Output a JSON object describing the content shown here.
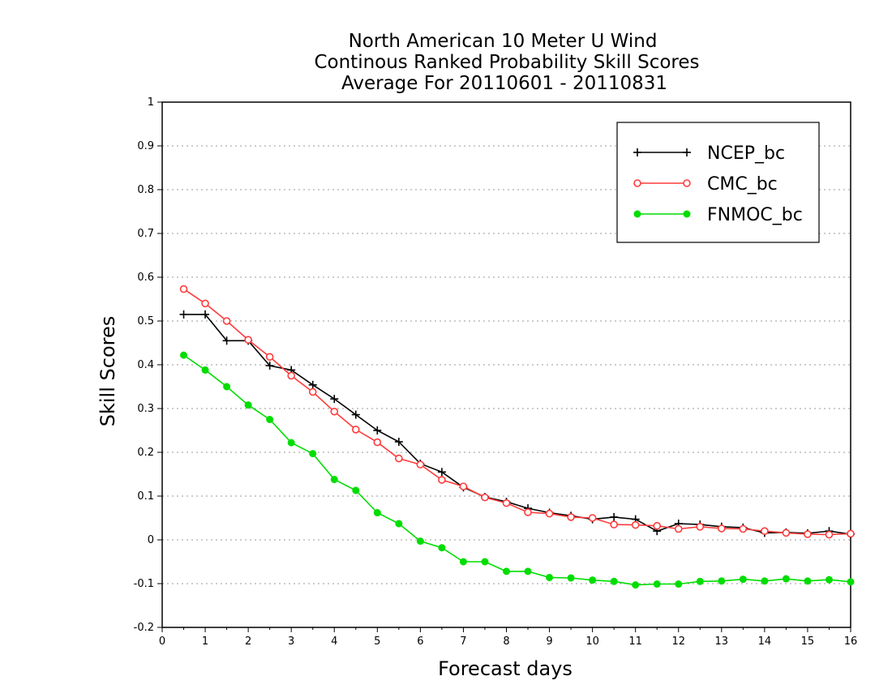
{
  "chart_data": {
    "type": "line",
    "title": [
      "North American 10 Meter U Wind",
      "Continous Ranked Probability Skill Scores",
      "Average For 20110601 - 20110831"
    ],
    "xlabel": "Forecast days",
    "ylabel": "Skill Scores",
    "xlim": [
      0,
      16
    ],
    "ylim": [
      -0.2,
      1
    ],
    "xticks": [
      0,
      1,
      2,
      3,
      4,
      5,
      6,
      7,
      8,
      9,
      10,
      11,
      12,
      13,
      14,
      15,
      16
    ],
    "xtick_labels": [
      "0",
      "1",
      "2",
      "3",
      "4",
      "5",
      "6",
      "7",
      "8",
      "9",
      "10",
      "11",
      "12",
      "13",
      "14",
      "15",
      "16"
    ],
    "yticks": [
      -0.2,
      -0.1,
      0,
      0.1,
      0.2,
      0.3,
      0.4,
      0.5,
      0.6,
      0.7,
      0.8,
      0.9,
      1
    ],
    "ytick_labels": [
      "-0.2",
      "-0.1",
      "0",
      "0.1",
      "0.2",
      "0.3",
      "0.4",
      "0.5",
      "0.6",
      "0.7",
      "0.8",
      "0.9",
      "1"
    ],
    "grid": true,
    "legend_position": "top-right",
    "x": [
      0.5,
      1,
      1.5,
      2,
      2.5,
      3,
      3.5,
      4,
      4.5,
      5,
      5.5,
      6,
      6.5,
      7,
      7.5,
      8,
      8.5,
      9,
      9.5,
      10,
      10.5,
      11,
      11.5,
      12,
      12.5,
      13,
      13.5,
      14,
      14.5,
      15,
      15.5,
      16
    ],
    "series": [
      {
        "name": "NCEP_bc",
        "color": "#000000",
        "marker": "plus",
        "values": [
          0.515,
          0.515,
          0.455,
          0.455,
          0.398,
          0.388,
          0.354,
          0.322,
          0.286,
          0.25,
          0.224,
          0.174,
          0.155,
          0.12,
          0.098,
          0.087,
          0.072,
          0.062,
          0.055,
          0.047,
          0.052,
          0.047,
          0.02,
          0.037,
          0.035,
          0.03,
          0.028,
          0.016,
          0.017,
          0.015,
          0.02,
          0.013
        ]
      },
      {
        "name": "CMC_bc",
        "color": "#ff3b3b",
        "marker": "open-circle",
        "values": [
          0.573,
          0.54,
          0.5,
          0.457,
          0.418,
          0.375,
          0.338,
          0.293,
          0.252,
          0.223,
          0.186,
          0.172,
          0.137,
          0.122,
          0.097,
          0.084,
          0.063,
          0.06,
          0.052,
          0.05,
          0.035,
          0.034,
          0.032,
          0.025,
          0.03,
          0.026,
          0.025,
          0.02,
          0.016,
          0.013,
          0.012,
          0.014
        ]
      },
      {
        "name": "FNMOC_bc",
        "color": "#00dd00",
        "marker": "filled-circle",
        "values": [
          0.422,
          0.388,
          0.35,
          0.308,
          0.275,
          0.222,
          0.197,
          0.138,
          0.113,
          0.062,
          0.037,
          -0.003,
          -0.018,
          -0.05,
          -0.05,
          -0.072,
          -0.072,
          -0.086,
          -0.087,
          -0.092,
          -0.095,
          -0.103,
          -0.101,
          -0.101,
          -0.095,
          -0.094,
          -0.09,
          -0.094,
          -0.089,
          -0.094,
          -0.091,
          -0.096
        ]
      }
    ]
  }
}
